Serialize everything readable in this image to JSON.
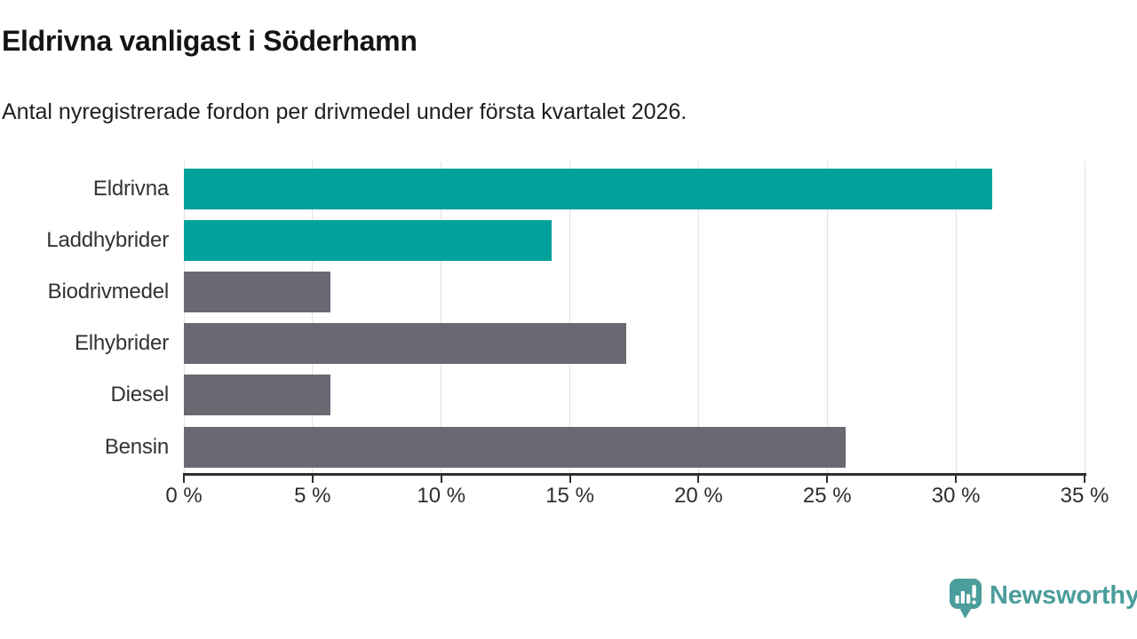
{
  "chart_data": {
    "type": "bar",
    "orientation": "horizontal",
    "title": "Eldrivna vanligast i Söderhamn",
    "subtitle": "Antal nyregistrerade fordon per drivmedel under första kvartalet 2026.",
    "categories": [
      "Eldrivna",
      "Laddhybrider",
      "Biodrivmedel",
      "Elhybrider",
      "Diesel",
      "Bensin"
    ],
    "values": [
      31.4,
      14.3,
      5.7,
      17.2,
      5.7,
      25.7
    ],
    "unit": "%",
    "xlim": [
      0,
      35
    ],
    "x_ticks": [
      0,
      5,
      10,
      15,
      20,
      25,
      30,
      35
    ],
    "x_tick_labels": [
      "0 %",
      "5 %",
      "10 %",
      "15 %",
      "20 %",
      "25 %",
      "30 %",
      "35 %"
    ],
    "bar_colors": [
      "#00a29b",
      "#00a29b",
      "#6c6872",
      "#6c6872",
      "#6c6872",
      "#6c6872"
    ],
    "grid": true,
    "legend": "none"
  },
  "colors": {
    "highlight_teal": "#00a29b",
    "neutral_gray": "#6c6872",
    "gridline": "#e2e2e2",
    "axis": "#2f2f2f",
    "label_text": "#333333",
    "brand_teal": "#4a9d9b"
  },
  "footer": {
    "brand": "Newsworthy",
    "logo_icon": "newsworthy-speech-bubble-chart-icon"
  }
}
